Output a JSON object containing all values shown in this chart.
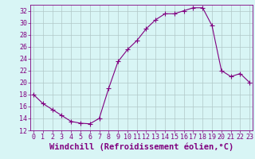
{
  "hours": [
    0,
    1,
    2,
    3,
    4,
    5,
    6,
    7,
    8,
    9,
    10,
    11,
    12,
    13,
    14,
    15,
    16,
    17,
    18,
    19,
    20,
    21,
    22,
    23
  ],
  "windchill": [
    18.0,
    16.5,
    15.5,
    14.5,
    13.5,
    13.2,
    13.1,
    14.0,
    19.0,
    23.5,
    25.5,
    27.0,
    29.0,
    30.5,
    31.5,
    31.5,
    32.0,
    32.5,
    32.5,
    29.5,
    22.0,
    21.0,
    21.5,
    20.0
  ],
  "line_color": "#800080",
  "marker": "+",
  "markersize": 4,
  "linewidth": 0.8,
  "bg_color": "#d8f5f5",
  "grid_color": "#b0c8c8",
  "xlabel": "Windchill (Refroidissement éolien,°C)",
  "xlabel_color": "#800080",
  "ylim": [
    12,
    33
  ],
  "yticks": [
    12,
    14,
    16,
    18,
    20,
    22,
    24,
    26,
    28,
    30,
    32
  ],
  "xticks": [
    0,
    1,
    2,
    3,
    4,
    5,
    6,
    7,
    8,
    9,
    10,
    11,
    12,
    13,
    14,
    15,
    16,
    17,
    18,
    19,
    20,
    21,
    22,
    23
  ],
  "tick_color": "#800080",
  "tick_fontsize": 6,
  "xlabel_fontsize": 7.5
}
